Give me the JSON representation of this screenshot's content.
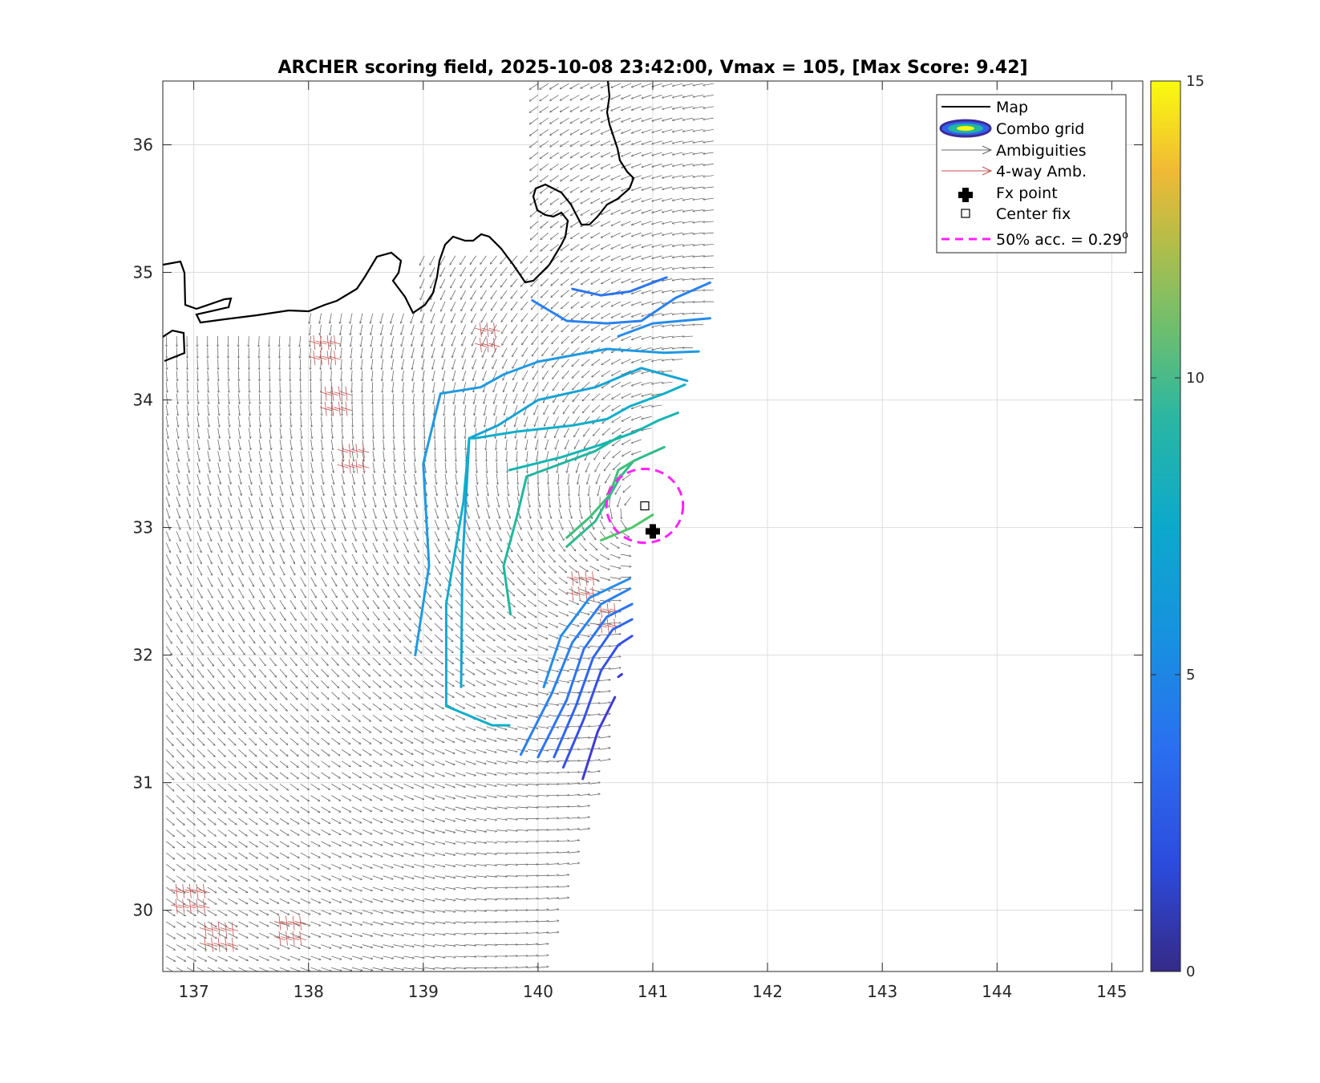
{
  "chart_data": {
    "type": "vector-field-contour",
    "title": "ARCHER scoring field, 2025-10-08 23:42:00, Vmax = 105, [Max Score: 9.42]",
    "xlabel": "",
    "ylabel": "",
    "xlim": [
      136.73,
      145.27
    ],
    "ylim": [
      29.52,
      36.5
    ],
    "xticks": [
      "137",
      "138",
      "139",
      "140",
      "141",
      "142",
      "143",
      "144",
      "145"
    ],
    "yticks": [
      "30",
      "31",
      "32",
      "33",
      "34",
      "35",
      "36"
    ],
    "grid": true,
    "colorbar": {
      "range": [
        0,
        15
      ],
      "ticks": [
        "0",
        "5",
        "10",
        "15"
      ],
      "colormap": "parula"
    },
    "legend": {
      "placement": "top-right",
      "entries": [
        "Map",
        "Combo grid",
        "Ambiguities",
        "4-way Amb.",
        "Fx point",
        "Center fix",
        "50% acc. = 0.29"
      ],
      "superscript": "o"
    },
    "fx_point": [
      141.0,
      32.97
    ],
    "center_fix": [
      140.93,
      33.17
    ],
    "accuracy_circle_radius_deg": 0.29,
    "contours": [
      {
        "level": 1.5,
        "color": "#3e3ad8",
        "points": [
          [
            140.39,
            31.03
          ],
          [
            140.52,
            31.4
          ],
          [
            140.67,
            31.67
          ]
        ]
      },
      {
        "level": 1.5,
        "color": "#3e3ad8",
        "points": [
          [
            140.7,
            31.83
          ],
          [
            140.73,
            31.85
          ]
        ]
      },
      {
        "level": 2.5,
        "color": "#3550e8",
        "points": [
          [
            140.22,
            31.12
          ],
          [
            140.4,
            31.5
          ],
          [
            140.55,
            31.88
          ],
          [
            140.7,
            32.08
          ],
          [
            140.82,
            32.15
          ]
        ]
      },
      {
        "level": 3.0,
        "color": "#2f63ef",
        "points": [
          [
            140.14,
            31.2
          ],
          [
            140.33,
            31.6
          ],
          [
            140.48,
            31.98
          ],
          [
            140.65,
            32.2
          ],
          [
            140.82,
            32.28
          ]
        ]
      },
      {
        "level": 3.5,
        "color": "#2c74f0",
        "points": [
          [
            140.0,
            31.2
          ],
          [
            140.25,
            31.65
          ],
          [
            140.4,
            32.05
          ],
          [
            140.6,
            32.3
          ],
          [
            140.82,
            32.4
          ]
        ]
      },
      {
        "level": 4.0,
        "color": "#2a81ee",
        "points": [
          [
            139.85,
            31.22
          ],
          [
            140.12,
            31.7
          ],
          [
            140.3,
            32.1
          ],
          [
            140.55,
            32.4
          ],
          [
            140.8,
            32.52
          ]
        ]
      },
      {
        "level": 4.5,
        "color": "#268ce8",
        "points": [
          [
            140.05,
            31.75
          ],
          [
            140.2,
            32.15
          ],
          [
            140.45,
            32.45
          ],
          [
            140.8,
            32.6
          ]
        ]
      },
      {
        "level": 3.5,
        "color": "#2c74f0",
        "points": [
          [
            140.3,
            34.87
          ],
          [
            140.55,
            34.82
          ],
          [
            140.8,
            34.85
          ],
          [
            141.0,
            34.92
          ],
          [
            141.12,
            34.96
          ]
        ]
      },
      {
        "level": 4.0,
        "color": "#2a81ee",
        "points": [
          [
            139.95,
            34.78
          ],
          [
            140.25,
            34.62
          ],
          [
            140.6,
            34.6
          ],
          [
            140.9,
            34.62
          ],
          [
            141.2,
            34.8
          ],
          [
            141.5,
            34.92
          ]
        ]
      },
      {
        "level": 4.5,
        "color": "#268ce8",
        "points": [
          [
            140.7,
            34.5
          ],
          [
            141.0,
            34.6
          ],
          [
            141.5,
            34.64
          ]
        ]
      },
      {
        "level": 5.0,
        "color": "#1f9ae0",
        "points": [
          [
            138.93,
            32.0
          ],
          [
            139.05,
            32.7
          ],
          [
            139.0,
            33.5
          ],
          [
            139.15,
            34.05
          ],
          [
            139.5,
            34.1
          ],
          [
            139.7,
            34.2
          ],
          [
            140.0,
            34.3
          ],
          [
            140.6,
            34.4
          ],
          [
            141.1,
            34.37
          ],
          [
            141.4,
            34.38
          ]
        ]
      },
      {
        "level": 5.5,
        "color": "#16a3d4",
        "points": [
          [
            139.33,
            31.75
          ],
          [
            139.34,
            32.7
          ],
          [
            139.4,
            33.7
          ],
          [
            139.65,
            33.8
          ],
          [
            140.0,
            34.0
          ],
          [
            140.5,
            34.1
          ],
          [
            140.9,
            34.25
          ],
          [
            141.3,
            34.15
          ]
        ]
      },
      {
        "level": 6.0,
        "color": "#0faec9",
        "points": [
          [
            139.75,
            31.45
          ],
          [
            139.6,
            31.45
          ],
          [
            139.2,
            31.6
          ],
          [
            139.2,
            32.4
          ],
          [
            139.35,
            33.2
          ],
          [
            139.4,
            33.7
          ],
          [
            139.45,
            33.7
          ],
          [
            139.8,
            33.75
          ],
          [
            140.3,
            33.8
          ],
          [
            140.6,
            33.85
          ],
          [
            140.8,
            33.95
          ],
          [
            141.1,
            34.05
          ],
          [
            141.28,
            34.12
          ]
        ]
      },
      {
        "level": 7.0,
        "color": "#13b5b3",
        "points": [
          [
            139.75,
            33.45
          ],
          [
            140.2,
            33.55
          ],
          [
            140.55,
            33.65
          ],
          [
            140.85,
            33.75
          ],
          [
            141.05,
            33.84
          ],
          [
            141.22,
            33.9
          ]
        ]
      },
      {
        "level": 7.5,
        "color": "#20b69f",
        "points": [
          [
            139.76,
            32.32
          ],
          [
            139.7,
            32.7
          ],
          [
            139.82,
            33.1
          ],
          [
            139.9,
            33.4
          ],
          [
            140.2,
            33.5
          ],
          [
            140.5,
            33.6
          ],
          [
            140.72,
            33.72
          ]
        ]
      },
      {
        "level": 8.0,
        "color": "#2fbb89",
        "points": [
          [
            140.25,
            32.85
          ],
          [
            140.5,
            33.05
          ],
          [
            140.72,
            33.4
          ],
          [
            140.83,
            33.52
          ],
          [
            140.9,
            33.55
          ],
          [
            141.1,
            33.63
          ]
        ]
      },
      {
        "level": 8.5,
        "color": "#3ebf78",
        "points": [
          [
            140.25,
            32.92
          ],
          [
            140.45,
            33.08
          ],
          [
            140.62,
            33.25
          ],
          [
            140.7,
            33.45
          ],
          [
            140.83,
            33.52
          ]
        ]
      },
      {
        "level": 9.0,
        "color": "#4fc46a",
        "points": [
          [
            140.55,
            32.9
          ],
          [
            140.82,
            33.0
          ],
          [
            141.0,
            33.1
          ]
        ]
      }
    ]
  },
  "map_coast": {
    "label": "Map"
  }
}
